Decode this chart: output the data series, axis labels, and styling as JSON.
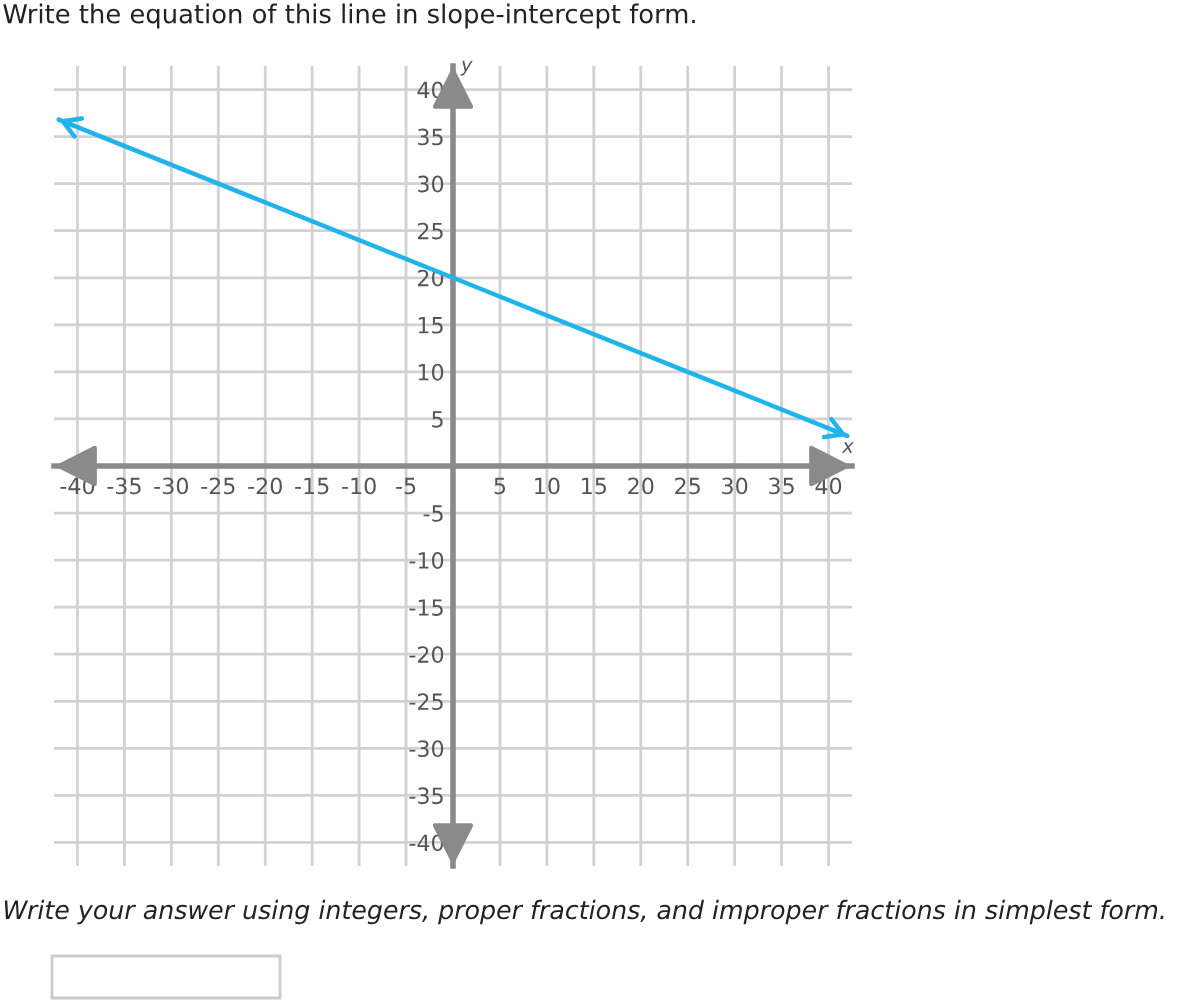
{
  "chart_data": {
    "type": "line",
    "title": "Write the equation of this line in slope-intercept form.",
    "xlabel": "x",
    "ylabel": "y",
    "annotations": [
      "Write your answer using integers, proper fractions, and improper fractions in simplest form."
    ],
    "series": [
      {
        "color": "#1fb4ec",
        "x": [
          -42,
          -25,
          0,
          25,
          42
        ],
        "values": [
          36.8,
          30,
          20,
          10,
          3.2
        ]
      }
    ],
    "xlim": [
      -42.5,
      42.5
    ],
    "ylim": [
      -42.5,
      42.5
    ],
    "xticks": [
      -40,
      -35,
      -30,
      -25,
      -20,
      -15,
      -10,
      -5,
      {
        "value": 0,
        "label": null
      },
      5,
      10,
      15,
      20,
      25,
      30,
      35,
      40
    ],
    "yticks": [
      -40,
      -35,
      -30,
      -25,
      -20,
      -15,
      -10,
      -5,
      {
        "value": 0,
        "label": null
      },
      5,
      10,
      15,
      20,
      25,
      30,
      35,
      40
    ],
    "grid": true,
    "marker": "none",
    "line_style": "solid"
  }
}
